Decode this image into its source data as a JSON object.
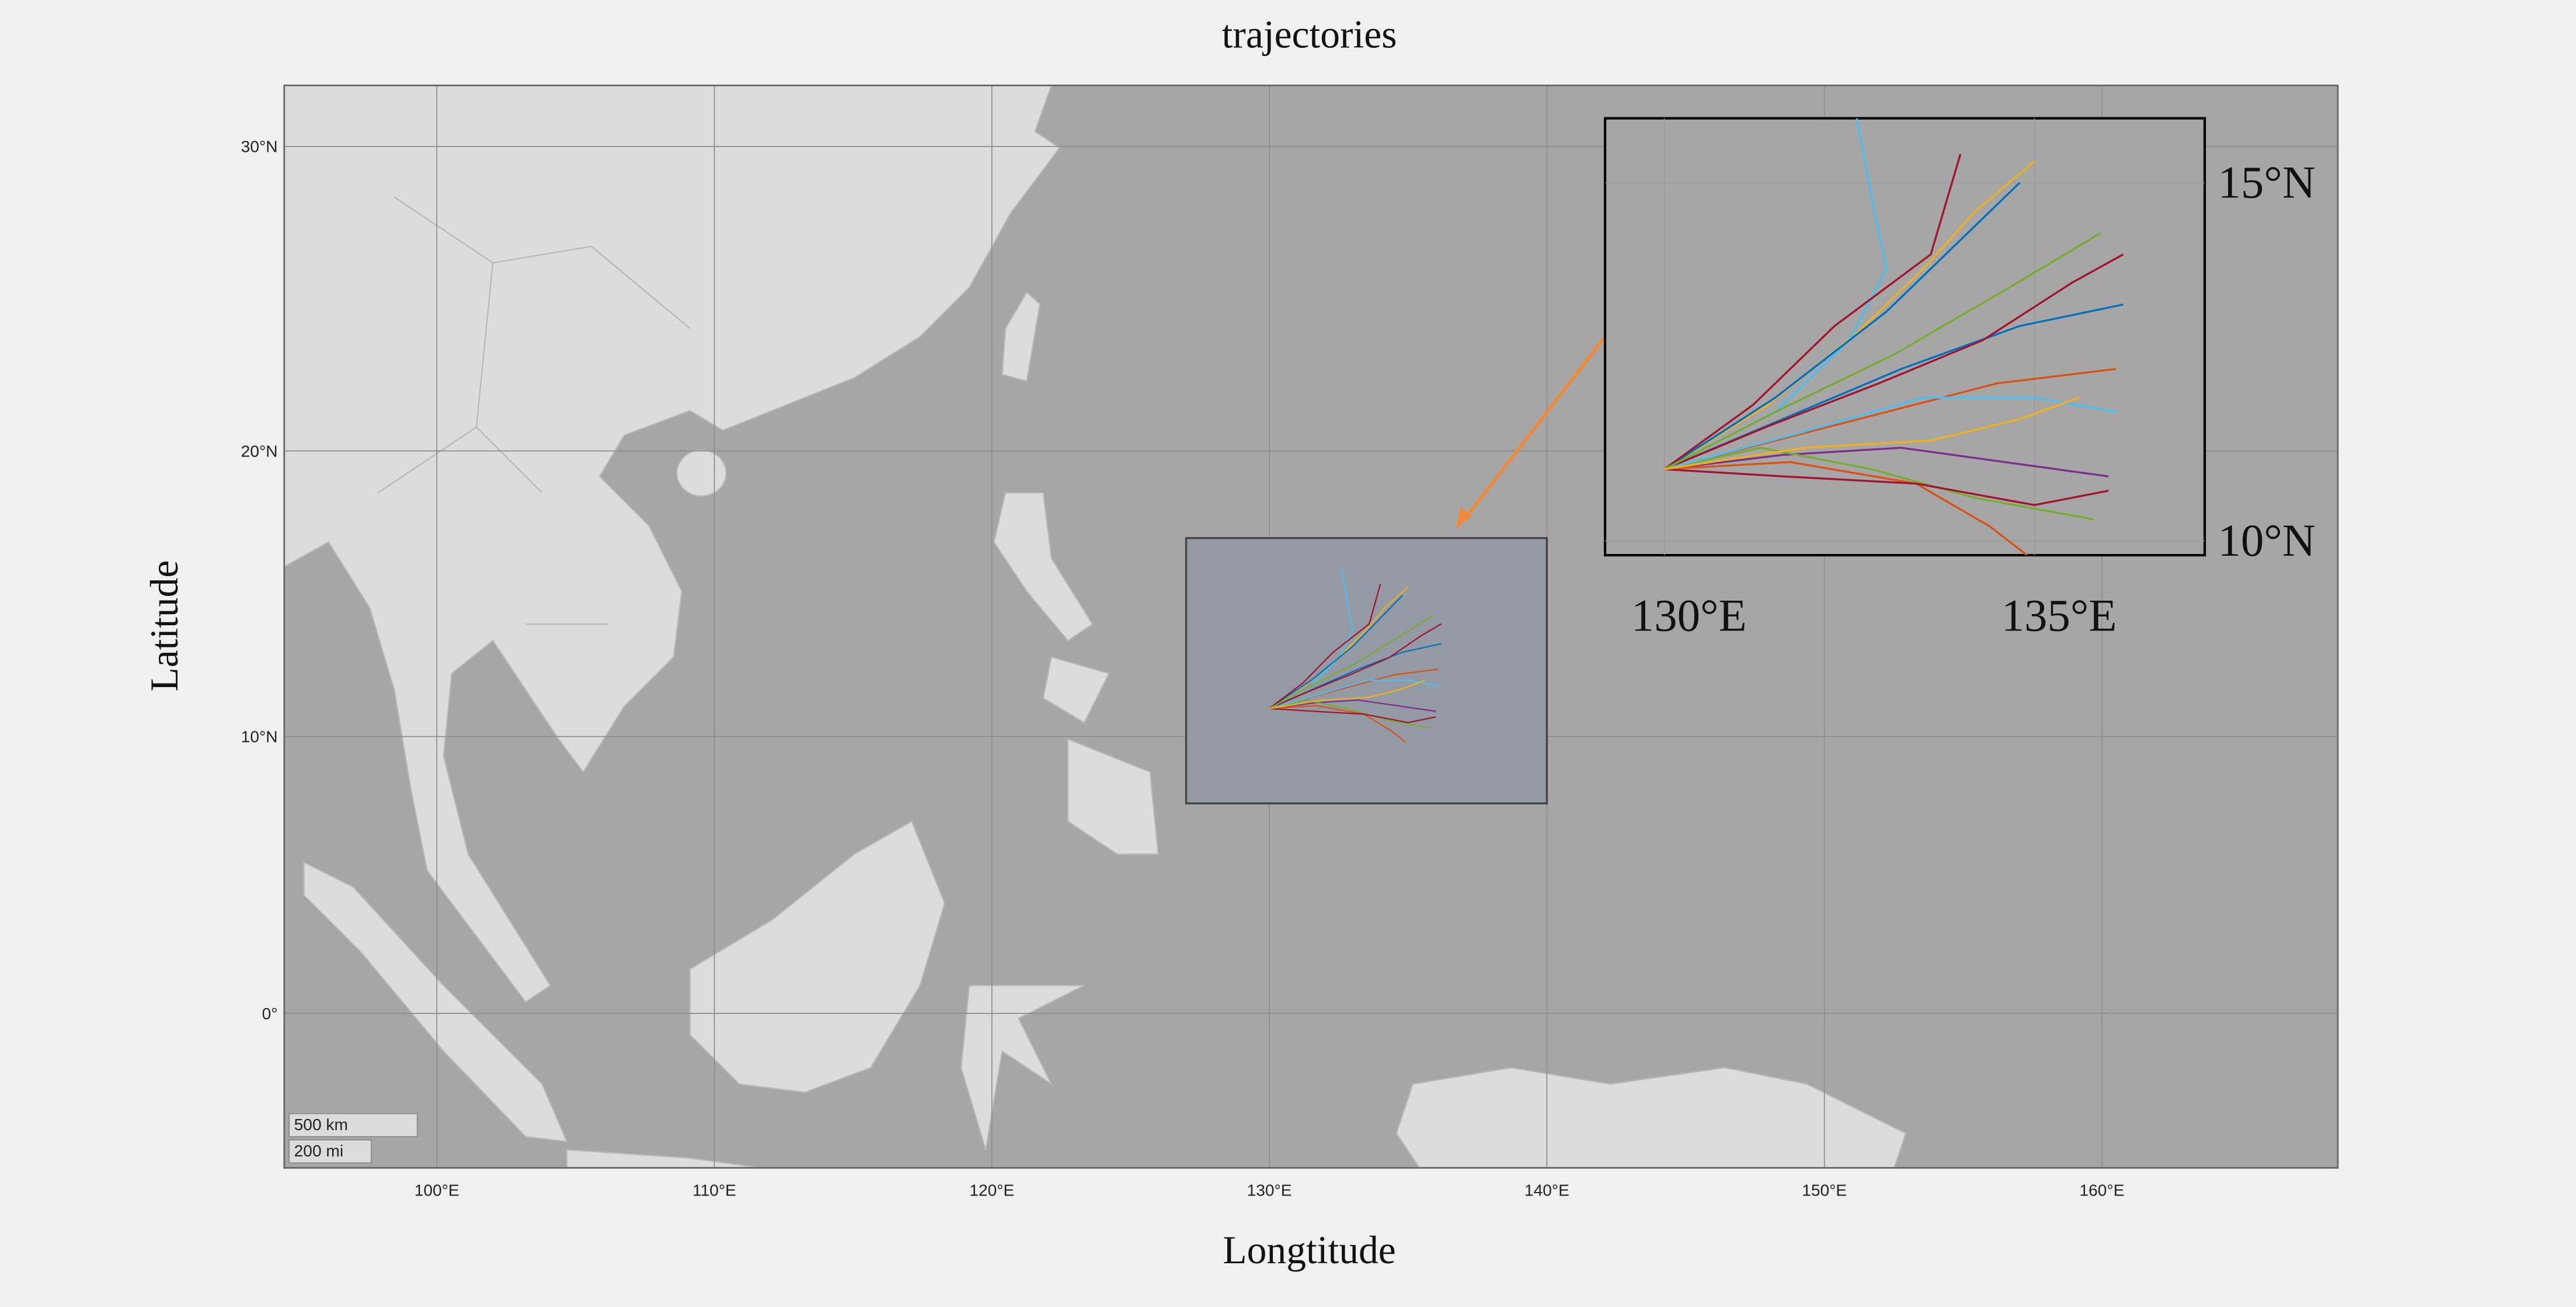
{
  "chart_data": {
    "type": "trajectory-map",
    "title": "trajectories",
    "x_label": "Longtitude",
    "y_label": "Latitude",
    "xlim": [
      94.5,
      168.5
    ],
    "ylim": [
      -5.6,
      31.9
    ],
    "xticks": [
      {
        "value": 100,
        "label": "100°E"
      },
      {
        "value": 110,
        "label": "110°E"
      },
      {
        "value": 120,
        "label": "120°E"
      },
      {
        "value": 130,
        "label": "130°E"
      },
      {
        "value": 140,
        "label": "140°E"
      },
      {
        "value": 150,
        "label": "150°E"
      },
      {
        "value": 160,
        "label": "160°E"
      }
    ],
    "yticks": [
      {
        "value": 0,
        "label": "0°"
      },
      {
        "value": 10,
        "label": "10°N"
      },
      {
        "value": 20,
        "label": "20°N"
      },
      {
        "value": 30,
        "label": "30°N"
      }
    ],
    "grid": true,
    "scale_bar": [
      "500 km",
      "200 mi"
    ],
    "region": {
      "xlim": [
        127,
        140
      ],
      "ylim": [
        7.6,
        17
      ]
    },
    "zoom": {
      "xlim": [
        129.2,
        137.3
      ],
      "ylim": [
        9.8,
        15.9
      ],
      "xticks": [
        {
          "value": 130,
          "label": "130°E"
        },
        {
          "value": 135,
          "label": "135°E"
        }
      ],
      "yticks": [
        {
          "value": 10,
          "label": "10°N"
        },
        {
          "value": 15,
          "label": "15°N"
        }
      ]
    },
    "tracks": [
      {
        "color": "#0072BD",
        "lon": [
          130.0,
          131.6,
          133.2,
          134.8,
          136.2
        ],
        "lat": [
          11.0,
          11.7,
          12.4,
          13.0,
          13.3
        ]
      },
      {
        "color": "#D95319",
        "lon": [
          130.0,
          131.5,
          133.0,
          134.5,
          136.1
        ],
        "lat": [
          11.0,
          11.4,
          11.8,
          12.2,
          12.4
        ]
      },
      {
        "color": "#EDB120",
        "lon": [
          130.0,
          131.4,
          132.6,
          133.5,
          134.2,
          135.0
        ],
        "lat": [
          11.0,
          11.9,
          12.9,
          13.8,
          14.6,
          15.3
        ]
      },
      {
        "color": "#4DBEEE",
        "lon": [
          130.0,
          131.5,
          132.5,
          133.0,
          132.8,
          132.6
        ],
        "lat": [
          11.0,
          11.8,
          12.8,
          13.8,
          14.8,
          15.9
        ]
      },
      {
        "color": "#7E2F8E",
        "lon": [
          130.0,
          131.6,
          133.2,
          134.6,
          136.0
        ],
        "lat": [
          11.0,
          11.2,
          11.3,
          11.1,
          10.9
        ]
      },
      {
        "color": "#77AC30",
        "lon": [
          130.0,
          131.3,
          132.8,
          134.2,
          135.8
        ],
        "lat": [
          11.0,
          11.3,
          11.0,
          10.6,
          10.3
        ]
      },
      {
        "color": "#D95319",
        "lon": [
          130.0,
          131.7,
          133.4,
          134.4,
          134.9
        ],
        "lat": [
          11.0,
          11.1,
          10.8,
          10.2,
          9.8
        ]
      },
      {
        "color": "#A2142F",
        "lon": [
          130.0,
          131.4,
          132.9,
          134.3,
          135.5,
          136.2
        ],
        "lat": [
          11.0,
          11.6,
          12.2,
          12.8,
          13.6,
          14.0
        ]
      },
      {
        "color": "#0072BD",
        "lon": [
          130.0,
          131.5,
          133.0,
          134.0,
          134.8
        ],
        "lat": [
          11.0,
          12.0,
          13.2,
          14.2,
          15.0
        ]
      },
      {
        "color": "#4DBEEE",
        "lon": [
          130.0,
          131.8,
          133.5,
          135.0,
          136.1
        ],
        "lat": [
          11.0,
          11.5,
          12.0,
          12.0,
          11.8
        ]
      },
      {
        "color": "#A2142F",
        "lon": [
          130.0,
          131.2,
          132.3,
          133.6,
          134.0
        ],
        "lat": [
          11.0,
          11.9,
          13.0,
          14.0,
          15.4
        ]
      },
      {
        "color": "#A2142F",
        "lon": [
          130.0,
          131.6,
          133.4,
          135.0,
          136.0
        ],
        "lat": [
          11.0,
          10.9,
          10.8,
          10.5,
          10.7
        ]
      },
      {
        "color": "#77AC30",
        "lon": [
          130.0,
          131.5,
          133.1,
          134.6,
          135.9
        ],
        "lat": [
          11.0,
          11.8,
          12.6,
          13.5,
          14.3
        ]
      },
      {
        "color": "#EDB120",
        "lon": [
          130.0,
          131.9,
          133.6,
          134.8,
          135.6
        ],
        "lat": [
          11.0,
          11.3,
          11.4,
          11.7,
          12.0
        ]
      }
    ]
  }
}
